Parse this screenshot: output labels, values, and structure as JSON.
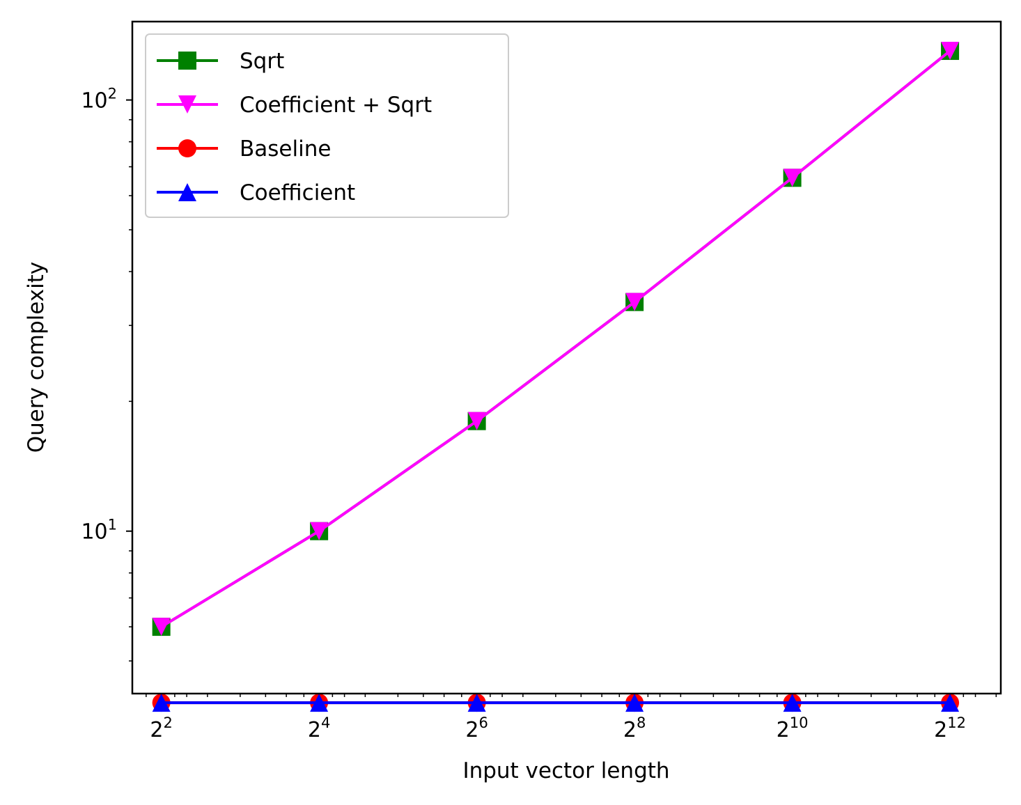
{
  "chart_data": {
    "type": "line",
    "xlabel": "Input vector length",
    "ylabel": "Query complexity",
    "x_scale": "log2",
    "y_scale": "log10",
    "x": [
      4,
      16,
      64,
      256,
      1024,
      4096
    ],
    "x_tick_labels": [
      {
        "base": "2",
        "exp": "2"
      },
      {
        "base": "2",
        "exp": "4"
      },
      {
        "base": "2",
        "exp": "6"
      },
      {
        "base": "2",
        "exp": "8"
      },
      {
        "base": "2",
        "exp": "10"
      },
      {
        "base": "2",
        "exp": "12"
      }
    ],
    "y_tick_labels": [
      {
        "base": "10",
        "exp": "1"
      },
      {
        "base": "10",
        "exp": "2"
      }
    ],
    "xlim": [
      3.1,
      6400
    ],
    "ylim": [
      4.2,
      152
    ],
    "grid": false,
    "legend_position": "upper-left",
    "series": [
      {
        "name": "Sqrt",
        "color": "#008000",
        "marker": "square",
        "values": [
          6,
          10,
          18,
          34,
          66,
          130
        ]
      },
      {
        "name": "Coefficient + Sqrt",
        "color": "#ff00ff",
        "marker": "triangle-down",
        "values": [
          6,
          10,
          18,
          34,
          66,
          130
        ]
      },
      {
        "name": "Baseline",
        "color": "#ff0000",
        "marker": "circle",
        "values": [
          4,
          4,
          4,
          4,
          4,
          4
        ]
      },
      {
        "name": "Coefficient",
        "color": "#0000ff",
        "marker": "triangle-up",
        "values": [
          4,
          4,
          4,
          4,
          4,
          4
        ]
      }
    ]
  }
}
